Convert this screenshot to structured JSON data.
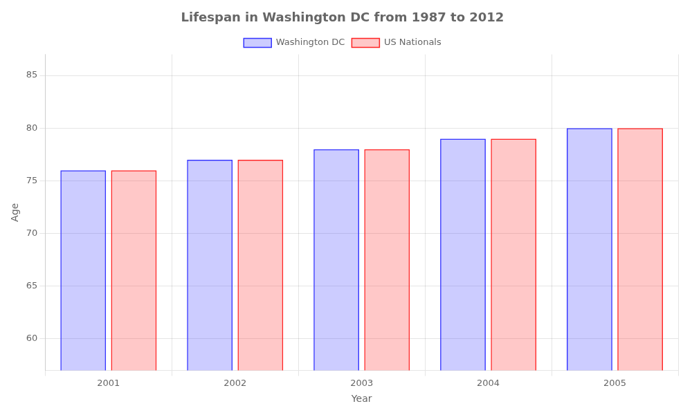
{
  "chart_data": {
    "type": "bar",
    "title": "Lifespan in Washington DC from 1987 to 2012",
    "x_label": "Year",
    "y_label": "Age",
    "categories": [
      "2001",
      "2002",
      "2003",
      "2004",
      "2005"
    ],
    "series": [
      {
        "name": "Washington DC",
        "color": "#3333ff",
        "values": [
          76,
          77,
          78,
          79,
          80
        ]
      },
      {
        "name": "US Nationals",
        "color": "#ff2222",
        "values": [
          76,
          77,
          78,
          79,
          80
        ]
      }
    ],
    "ylim": [
      57,
      87
    ],
    "yticks": [
      60,
      65,
      70,
      75,
      80,
      85
    ],
    "grid": true,
    "legend": "top"
  }
}
